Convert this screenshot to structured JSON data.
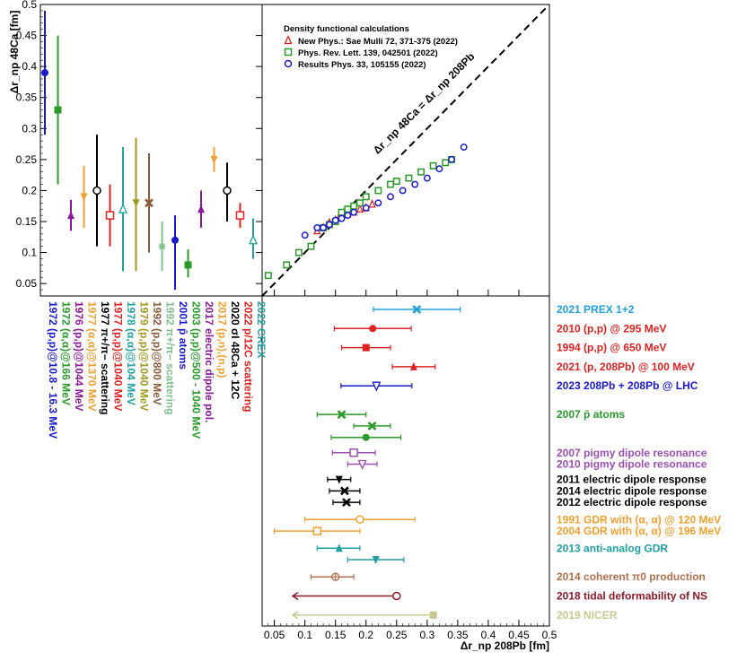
{
  "chart_data": [
    {
      "type": "scatter",
      "panel": "top-left",
      "ylabel": "Δr_np 48Ca [fm]",
      "ylim": [
        0.03,
        0.5
      ],
      "yticks": [
        "0.05",
        "0.1",
        "0.15",
        "0.2",
        "0.25",
        "0.3",
        "0.35",
        "0.4",
        "0.45",
        "0.5"
      ],
      "points": [
        {
          "label": "1972 (p,p)@10.8 - 16.3 MeV",
          "y": 0.39,
          "lo": 0.29,
          "hi": 0.49,
          "color": "#1a1acc",
          "marker": "circle-filled"
        },
        {
          "label": "1972 (α,α)@166 MeV",
          "y": 0.33,
          "lo": 0.21,
          "hi": 0.45,
          "color": "#2a9a2a",
          "marker": "square-filled"
        },
        {
          "label": "1976 (p,p)@1044 MeV",
          "y": 0.16,
          "lo": 0.135,
          "hi": 0.185,
          "color": "#8a1a9a",
          "marker": "triangle-up-filled"
        },
        {
          "label": "1977 (α,α)@1370 MeV",
          "y": 0.19,
          "lo": 0.14,
          "hi": 0.24,
          "color": "#f0a030",
          "marker": "triangle-down-filled"
        },
        {
          "label": "1977 π+/π− scattering",
          "y": 0.2,
          "lo": 0.11,
          "hi": 0.29,
          "color": "#000000",
          "marker": "circle-open"
        },
        {
          "label": "1977 (p,p)@1040 MeV",
          "y": 0.16,
          "lo": 0.11,
          "hi": 0.21,
          "color": "#dd2222",
          "marker": "square-open"
        },
        {
          "label": "1978 (α,α)@104 MeV",
          "y": 0.17,
          "lo": 0.07,
          "hi": 0.27,
          "color": "#20a0a0",
          "marker": "triangle-up-open"
        },
        {
          "label": "1979 (p,p)@1040 MeV",
          "y": 0.18,
          "lo": 0.07,
          "hi": 0.285,
          "color": "#a09a20",
          "marker": "triangle-down-filled"
        },
        {
          "label": "1992 (p,p)@800 MeV",
          "y": 0.18,
          "lo": 0.1,
          "hi": 0.26,
          "color": "#8a5a3a",
          "marker": "cross"
        },
        {
          "label": "1992 π+/π− scattering",
          "y": 0.11,
          "lo": 0.07,
          "hi": 0.15,
          "color": "#80c090",
          "marker": "star"
        },
        {
          "label": "2001 p̄ atoms",
          "y": 0.12,
          "lo": 0.04,
          "hi": 0.16,
          "color": "#1a1acc",
          "marker": "circle-filled"
        },
        {
          "label": "2003 (p,p)@500 - 1040 MeV",
          "y": 0.08,
          "lo": 0.06,
          "hi": 0.105,
          "color": "#2a9a2a",
          "marker": "square-filled"
        },
        {
          "label": "2017 electric dipole pol.",
          "y": 0.17,
          "lo": 0.14,
          "hi": 0.2,
          "color": "#8a1a9a",
          "marker": "triangle-up-filled"
        },
        {
          "label": "2017 (p,n),(n,p)",
          "y": 0.25,
          "lo": 0.23,
          "hi": 0.27,
          "color": "#f0a030",
          "marker": "triangle-down-filled"
        },
        {
          "label": "2020 σI 48Ca + 12C",
          "y": 0.2,
          "lo": 0.15,
          "hi": 0.245,
          "color": "#000000",
          "marker": "circle-open"
        },
        {
          "label": "2022 p/12C scattering",
          "y": 0.16,
          "lo": 0.14,
          "hi": 0.18,
          "color": "#dd2222",
          "marker": "square-open"
        },
        {
          "label": "2022 CREX",
          "y": 0.12,
          "lo": 0.09,
          "hi": 0.155,
          "color": "#20a0a0",
          "marker": "triangle-up-open"
        }
      ]
    },
    {
      "type": "scatter",
      "panel": "top-right",
      "title": "Density functional calculations",
      "diagonal_label": "Δr_np 48Ca = Δr_np 208Pb",
      "legend": [
        {
          "label": "New Phys.: Sae Mulli 72, 371-375 (2022)",
          "color": "#dd2222",
          "marker": "triangle-up-open"
        },
        {
          "label": "Phys. Rev. Lett. 139, 042501 (2022)",
          "color": "#2a9a2a",
          "marker": "square-open"
        },
        {
          "label": "Results Phys. 33, 105155 (2022)",
          "color": "#1a1acc",
          "marker": "circle-open"
        }
      ],
      "series": [
        {
          "name": "New Phys.: Sae Mulli 72, 371-375 (2022)",
          "marker": "triangle-up-open",
          "color": "#dd2222",
          "x": [
            0.12,
            0.13,
            0.14,
            0.15,
            0.155,
            0.16,
            0.17,
            0.18,
            0.19,
            0.2,
            0.21
          ],
          "y": [
            0.135,
            0.14,
            0.148,
            0.152,
            0.155,
            0.158,
            0.162,
            0.165,
            0.17,
            0.172,
            0.178
          ]
        },
        {
          "name": "Phys. Rev. Lett. 139, 042501 (2022)",
          "marker": "square-open",
          "color": "#2a9a2a",
          "x": [
            0.04,
            0.07,
            0.09,
            0.11,
            0.13,
            0.14,
            0.15,
            0.16,
            0.17,
            0.18,
            0.19,
            0.2,
            0.22,
            0.24,
            0.25,
            0.27,
            0.29,
            0.31,
            0.33,
            0.34
          ],
          "y": [
            0.063,
            0.08,
            0.1,
            0.11,
            0.14,
            0.145,
            0.15,
            0.165,
            0.17,
            0.175,
            0.18,
            0.19,
            0.2,
            0.21,
            0.215,
            0.22,
            0.23,
            0.24,
            0.245,
            0.25
          ]
        },
        {
          "name": "Results Phys. 33, 105155 (2022)",
          "marker": "circle-open",
          "color": "#1a1acc",
          "x": [
            0.1,
            0.12,
            0.13,
            0.14,
            0.15,
            0.16,
            0.17,
            0.18,
            0.2,
            0.22,
            0.24,
            0.26,
            0.28,
            0.3,
            0.32,
            0.34,
            0.36
          ],
          "y": [
            0.128,
            0.14,
            0.14,
            0.145,
            0.152,
            0.155,
            0.16,
            0.165,
            0.172,
            0.18,
            0.19,
            0.2,
            0.21,
            0.22,
            0.235,
            0.25,
            0.27
          ]
        }
      ]
    },
    {
      "type": "scatter",
      "panel": "bottom-right",
      "xlabel": "Δr_np 208Pb [fm]",
      "xlim": [
        0.03,
        0.5
      ],
      "xticks": [
        "0.05",
        "0.1",
        "0.15",
        "0.2",
        "0.25",
        "0.3",
        "0.35",
        "0.4",
        "0.45",
        "0.5"
      ],
      "points": [
        {
          "label": "2021 PREX 1+2",
          "x": 0.283,
          "lo": 0.212,
          "hi": 0.354,
          "color": "#20a0d8",
          "marker": "cross",
          "row": 0
        },
        {
          "label": "2010 (p,p) @ 295 MeV",
          "x": 0.211,
          "lo": 0.148,
          "hi": 0.274,
          "color": "#dd2222",
          "marker": "circle-filled",
          "row": 1
        },
        {
          "label": "1994 (p,p) @ 650 MeV",
          "x": 0.2,
          "lo": 0.16,
          "hi": 0.24,
          "color": "#dd2222",
          "marker": "square-filled",
          "row": 2
        },
        {
          "label": "2021 (p, 208Pb) @ 100 MeV",
          "x": 0.278,
          "lo": 0.243,
          "hi": 0.313,
          "color": "#dd2222",
          "marker": "triangle-up-filled",
          "row": 3
        },
        {
          "label": "2023 208Pb + 208Pb @ LHC",
          "x": 0.217,
          "lo": 0.159,
          "hi": 0.275,
          "color": "#1a1acc",
          "marker": "triangle-down-open",
          "row": 4
        },
        {
          "label": "2007 p̄ atoms",
          "x": 0.16,
          "lo": 0.12,
          "hi": 0.2,
          "color": "#2a9a2a",
          "marker": "cross",
          "row": 5.5
        },
        {
          "label": "",
          "x": 0.21,
          "lo": 0.18,
          "hi": 0.24,
          "color": "#2a9a2a",
          "marker": "cross",
          "row": 6.1
        },
        {
          "label": "",
          "x": 0.2,
          "lo": 0.143,
          "hi": 0.257,
          "color": "#2a9a2a",
          "marker": "circle-filled",
          "row": 6.7
        },
        {
          "label": "2007 pigmy dipole resonance",
          "x": 0.18,
          "lo": 0.145,
          "hi": 0.215,
          "color": "#9a50b0",
          "marker": "square-open",
          "row": 7.5
        },
        {
          "label": "2010 pigmy dipole resonance",
          "x": 0.194,
          "lo": 0.17,
          "hi": 0.218,
          "color": "#9a50b0",
          "marker": "triangle-down-open",
          "row": 8.1
        },
        {
          "label": "2011 electric dipole response",
          "x": 0.156,
          "lo": 0.137,
          "hi": 0.175,
          "color": "#000000",
          "marker": "triangle-down-filled",
          "row": 8.9
        },
        {
          "label": "2014 electric dipole response",
          "x": 0.165,
          "lo": 0.14,
          "hi": 0.19,
          "color": "#000000",
          "marker": "cross",
          "row": 9.5
        },
        {
          "label": "2012 electric dipole response",
          "x": 0.168,
          "lo": 0.146,
          "hi": 0.19,
          "color": "#000000",
          "marker": "cross",
          "row": 10.1
        },
        {
          "label": "1991 GDR with (α, α) @ 120 MeV",
          "x": 0.19,
          "lo": 0.1,
          "hi": 0.28,
          "color": "#f0a030",
          "marker": "circle-open",
          "row": 11
        },
        {
          "label": "2004 GDR with (α, α) @ 196 MeV",
          "x": 0.12,
          "lo": 0.05,
          "hi": 0.19,
          "color": "#f0a030",
          "marker": "square-open",
          "row": 11.6
        },
        {
          "label": "2013 anti-analog GDR",
          "x": 0.156,
          "lo": 0.12,
          "hi": 0.19,
          "color": "#20a0a0",
          "marker": "triangle-up-filled",
          "row": 12.5
        },
        {
          "label": "",
          "x": 0.216,
          "lo": 0.17,
          "hi": 0.262,
          "color": "#20a0a0",
          "marker": "triangle-down-filled",
          "row": 13.1
        },
        {
          "label": "2014 coherent π0 production",
          "x": 0.15,
          "lo": 0.11,
          "hi": 0.18,
          "color": "#b07050",
          "marker": "circle-open-cross",
          "row": 14
        },
        {
          "label": "2018 tidal deformability of NS",
          "x": 0.25,
          "lo": 0.08,
          "hi": 0.25,
          "color": "#8a1a2a",
          "marker": "circle-open",
          "upper_limit": true,
          "row": 15
        },
        {
          "label": "2019 NICER",
          "x": 0.31,
          "lo": 0.08,
          "hi": 0.31,
          "color": "#c8c890",
          "marker": "square-filled",
          "upper_limit": true,
          "row": 16
        }
      ]
    }
  ]
}
